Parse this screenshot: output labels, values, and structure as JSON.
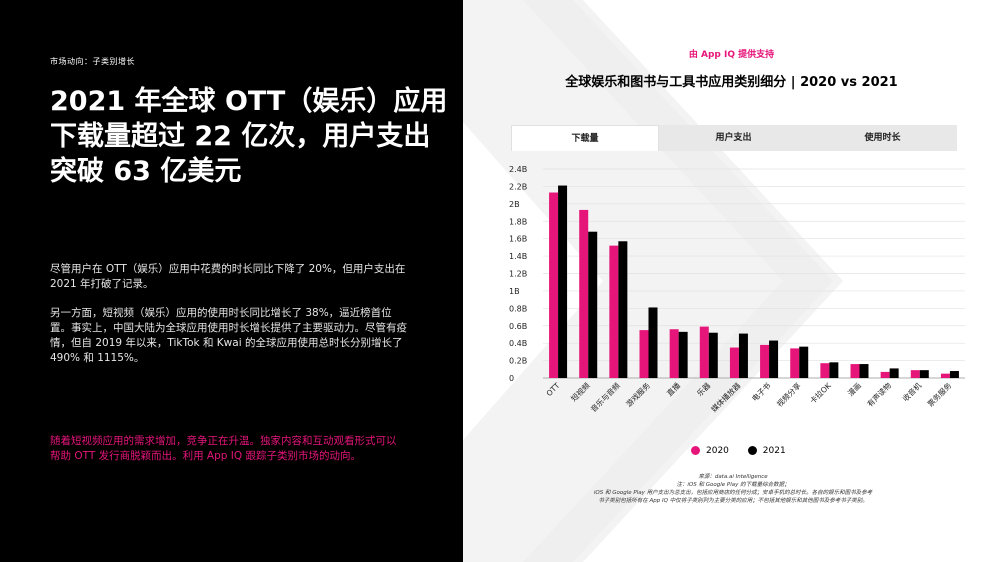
{
  "left": {
    "eyebrow": "市场动向：子类别增长",
    "headline": "2021 年全球 OTT（娱乐）应用下载量超过 22 亿次，用户支出突破 63 亿美元",
    "body1": "尽管用户在 OTT（娱乐）应用中花费的时长同比下降了 20%，但用户支出在 2021 年打破了记录。",
    "body2": "另一方面，短视频（娱乐）应用的使用时长同比增长了 38%，逼近榜首位置。事实上，中国大陆为全球应用使用时长增长提供了主要驱动力。尽管有疫情，但自 2019 年以来，TikTok 和 Kwai 的全球应用使用总时长分别增长了 490% 和 1115%。",
    "callout": "随着短视频应用的需求增加，竞争正在升温。独家内容和互动观看形式可以帮助 OTT 发行商脱颖而出。利用 App IQ 跟踪子类别市场的动向。"
  },
  "right": {
    "sponsor": "由 App IQ 提供支持",
    "title": "全球娱乐和图书与工具书应用类别细分 | 2020 vs 2021",
    "tabs": [
      {
        "label": "下载量",
        "active": true
      },
      {
        "label": "用户支出",
        "active": false
      },
      {
        "label": "使用时长",
        "active": false
      }
    ],
    "notes": [
      "来源：data.ai Intelligence",
      "注：iOS 和 Google Play 的下载量综合数据；",
      "iOS 和 Google Play 用户支出为总支出，包括应用商店的任何分成；安卓手机的总时长。各自的娱乐和图书及参考",
      "书子类别包括所有在 App IQ 中仅将子类别列为主要分类的应用；不包括其他娱乐和其他图书及参考书子类别。"
    ]
  },
  "colors": {
    "accent": "#e6157a",
    "series2020": "#e6157a",
    "series2021": "#000000"
  },
  "chart_data": {
    "type": "bar",
    "title": "全球娱乐和图书与工具书应用类别细分 | 2020 vs 2021",
    "xlabel": "",
    "ylabel": "",
    "ylim": [
      0,
      2.4
    ],
    "yticks": [
      0,
      0.2,
      0.4,
      0.6,
      0.8,
      1.0,
      1.2,
      1.4,
      1.6,
      1.8,
      2.0,
      2.2,
      2.4
    ],
    "ytick_labels": [
      "0",
      "0.2B",
      "0.4B",
      "0.6B",
      "0.8B",
      "1B",
      "1.2B",
      "1.4B",
      "1.6B",
      "1.8B",
      "2B",
      "2.2B",
      "2.4B"
    ],
    "categories": [
      "OTT",
      "短视频",
      "音乐与音频",
      "游戏服务",
      "直播",
      "乐器",
      "媒体播放器",
      "电子书",
      "视频分享",
      "卡拉OK",
      "漫画",
      "有声读物",
      "收音机",
      "票务服务"
    ],
    "series": [
      {
        "name": "2020",
        "values": [
          2.13,
          1.93,
          1.52,
          0.55,
          0.56,
          0.59,
          0.35,
          0.38,
          0.34,
          0.17,
          0.16,
          0.07,
          0.09,
          0.05
        ]
      },
      {
        "name": "2021",
        "values": [
          2.21,
          1.68,
          1.57,
          0.81,
          0.53,
          0.52,
          0.51,
          0.43,
          0.36,
          0.18,
          0.16,
          0.11,
          0.09,
          0.08
        ]
      }
    ],
    "grid": true,
    "legend": "bottom-center"
  }
}
